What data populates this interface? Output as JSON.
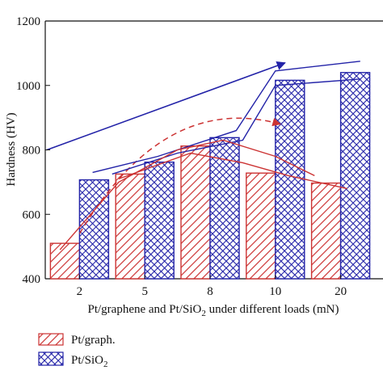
{
  "chart_data": {
    "type": "bar",
    "categories": [
      "2",
      "5",
      "8",
      "10",
      "20"
    ],
    "series": [
      {
        "name": "Pt/graph.",
        "values": [
          510,
          725,
          812,
          728,
          697
        ],
        "color": "#cc3333",
        "pattern": "diagonal-hatch"
      },
      {
        "name": "Pt/SiO2",
        "values": [
          707,
          762,
          838,
          1016,
          1040
        ],
        "color": "#2323a8",
        "pattern": "crosshatch"
      }
    ],
    "title": "",
    "xlabel": "Pt/graphene and Pt/SiO",
    "xlabel_sub": "2",
    "xlabel_tail": " under different loads (mN)",
    "ylabel": "Hardness (HV)",
    "ylim": [
      400,
      1200
    ],
    "yticks": [
      "400",
      "600",
      "800",
      "1000",
      "1200"
    ],
    "legend": [
      {
        "label": "Pt/graph.",
        "sub": ""
      },
      {
        "label": "Pt/SiO",
        "sub": "2"
      }
    ],
    "legend_position": "bottom-left",
    "grid": false,
    "trend_annotations": [
      {
        "color": "#2323a8",
        "style": "solid-arrow",
        "description": "rising arrow from 2 mN to 10 mN"
      },
      {
        "color": "#cc3333",
        "style": "dashed-arrow",
        "description": "curved dashed arrow from 5 mN to 10 mN"
      },
      {
        "color": "#2323a8",
        "style": "solid",
        "description": "Pt/SiO2 envelope lines"
      },
      {
        "color": "#cc3333",
        "style": "solid",
        "description": "Pt/graph. envelope lines"
      }
    ]
  }
}
